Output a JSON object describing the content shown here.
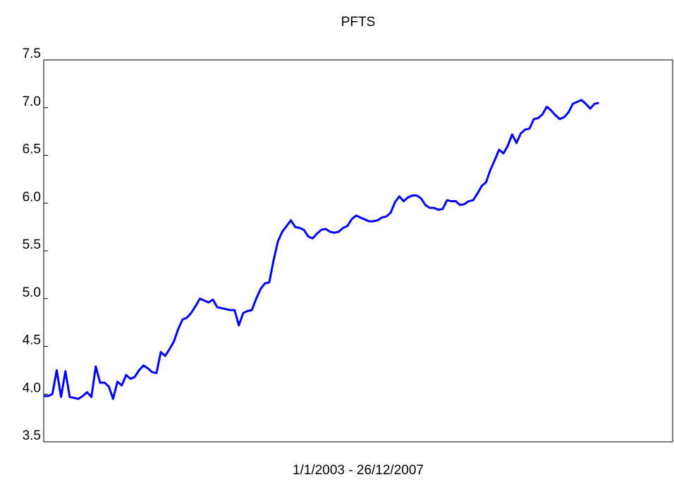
{
  "chart_data": {
    "type": "line",
    "title": "PFTS",
    "xlabel": "1/1/2003 - 26/12/2007",
    "series": [
      {
        "name": "PFTS",
        "color": "#0000ff",
        "values": [
          3.98,
          3.98,
          4.0,
          4.25,
          3.97,
          4.24,
          3.97,
          3.96,
          3.95,
          3.98,
          4.02,
          3.97,
          4.29,
          4.12,
          4.12,
          4.08,
          3.95,
          4.13,
          4.09,
          4.2,
          4.16,
          4.18,
          4.25,
          4.3,
          4.27,
          4.23,
          4.22,
          4.44,
          4.4,
          4.47,
          4.55,
          4.68,
          4.78,
          4.8,
          4.85,
          4.92,
          5.0,
          4.98,
          4.96,
          4.99,
          4.91,
          4.9,
          4.89,
          4.88,
          4.88,
          4.72,
          4.85,
          4.87,
          4.88,
          5.0,
          5.1,
          5.16,
          5.17,
          5.4,
          5.6,
          5.7,
          5.76,
          5.82,
          5.75,
          5.74,
          5.72,
          5.65,
          5.63,
          5.68,
          5.72,
          5.73,
          5.7,
          5.69,
          5.7,
          5.74,
          5.76,
          5.83,
          5.87,
          5.85,
          5.83,
          5.81,
          5.81,
          5.82,
          5.85,
          5.86,
          5.9,
          6.01,
          6.07,
          6.02,
          6.06,
          6.08,
          6.08,
          6.05,
          5.98,
          5.95,
          5.95,
          5.93,
          5.94,
          6.03,
          6.02,
          6.02,
          5.98,
          5.99,
          6.02,
          6.03,
          6.1,
          6.18,
          6.22,
          6.35,
          6.45,
          6.56,
          6.52,
          6.6,
          6.72,
          6.63,
          6.73,
          6.77,
          6.78,
          6.88,
          6.89,
          6.93,
          7.01,
          6.97,
          6.92,
          6.88,
          6.9,
          6.95,
          7.04,
          7.06,
          7.08,
          7.04,
          6.99,
          7.04,
          7.05
        ]
      }
    ],
    "xlim": [
      0,
      145
    ],
    "ylim": [
      3.5,
      7.5
    ],
    "yticks": [
      {
        "value": 3.5,
        "label": "3.5"
      },
      {
        "value": 4,
        "label": "4.0"
      },
      {
        "value": 4.5,
        "label": "4.5"
      },
      {
        "value": 5,
        "label": "5.0"
      },
      {
        "value": 5.5,
        "label": "5.5"
      },
      {
        "value": 6,
        "label": "6.0"
      },
      {
        "value": 6.5,
        "label": "6.5"
      },
      {
        "value": 7,
        "label": "7.0"
      },
      {
        "value": 7.5,
        "label": "7.5"
      }
    ]
  }
}
